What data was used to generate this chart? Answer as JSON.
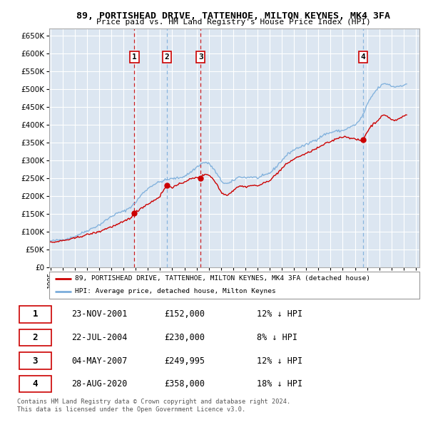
{
  "title": "89, PORTISHEAD DRIVE, TATTENHOE, MILTON KEYNES, MK4 3FA",
  "subtitle": "Price paid vs. HM Land Registry's House Price Index (HPI)",
  "ylim": [
    0,
    670000
  ],
  "yticks": [
    0,
    50000,
    100000,
    150000,
    200000,
    250000,
    300000,
    350000,
    400000,
    450000,
    500000,
    550000,
    600000,
    650000
  ],
  "ytick_labels": [
    "£0",
    "£50K",
    "£100K",
    "£150K",
    "£200K",
    "£250K",
    "£300K",
    "£350K",
    "£400K",
    "£450K",
    "£500K",
    "£550K",
    "£600K",
    "£650K"
  ],
  "plot_bg_color": "#dce6f1",
  "grid_color": "#ffffff",
  "sale_color": "#cc0000",
  "hpi_color": "#7aaddb",
  "sale_label": "89, PORTISHEAD DRIVE, TATTENHOE, MILTON KEYNES, MK4 3FA (detached house)",
  "hpi_label": "HPI: Average price, detached house, Milton Keynes",
  "sales": [
    {
      "date_x": 2001.896,
      "price": 152000,
      "label": "1",
      "vline_color": "#cc0000"
    },
    {
      "date_x": 2004.553,
      "price": 230000,
      "label": "2",
      "vline_color": "#7aaddb"
    },
    {
      "date_x": 2007.336,
      "price": 249995,
      "label": "3",
      "vline_color": "#cc0000"
    },
    {
      "date_x": 2020.66,
      "price": 358000,
      "label": "4",
      "vline_color": "#7aaddb"
    }
  ],
  "sale_table": [
    [
      "1",
      "23-NOV-2001",
      "£152,000",
      "12% ↓ HPI"
    ],
    [
      "2",
      "22-JUL-2004",
      "£230,000",
      "8% ↓ HPI"
    ],
    [
      "3",
      "04-MAY-2007",
      "£249,995",
      "12% ↓ HPI"
    ],
    [
      "4",
      "28-AUG-2020",
      "£358,000",
      "18% ↓ HPI"
    ]
  ],
  "footnote": "Contains HM Land Registry data © Crown copyright and database right 2024.\nThis data is licensed under the Open Government Licence v3.0.",
  "xlim": [
    1994.9,
    2025.3
  ],
  "xtick_start": 1995,
  "xtick_end": 2025
}
